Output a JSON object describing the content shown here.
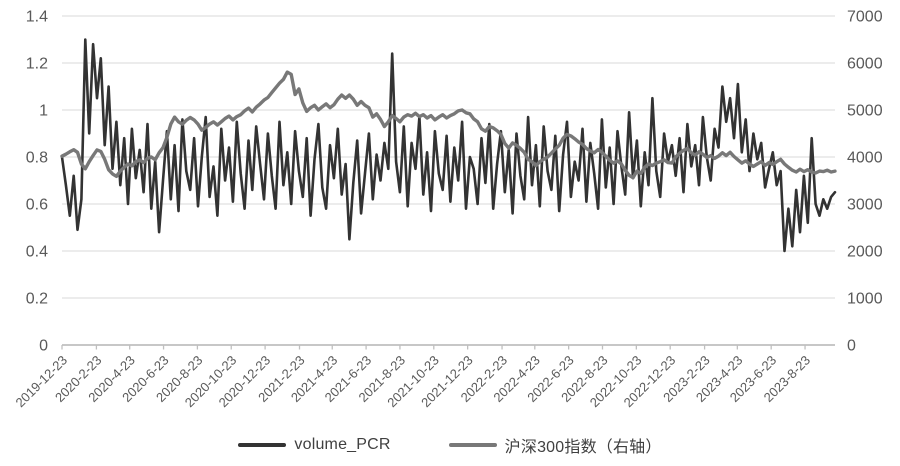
{
  "chart_data": {
    "type": "line",
    "title": "",
    "xlabel": "",
    "ylabel_left": "",
    "ylabel_right": "",
    "grid": "horizontal",
    "legend_position": "bottom",
    "x_start_date": "2019-12-23",
    "x_interval_days": 7,
    "x_tick_labels": [
      "2019-12-23",
      "2020-2-23",
      "2020-4-23",
      "2020-6-23",
      "2020-8-23",
      "2020-10-23",
      "2020-12-23",
      "2021-2-23",
      "2021-4-23",
      "2021-6-23",
      "2021-8-23",
      "2021-10-23",
      "2021-12-23",
      "2022-2-23",
      "2022-4-23",
      "2022-6-23",
      "2022-8-23",
      "2022-10-23",
      "2022-12-23",
      "2023-2-23",
      "2023-4-23",
      "2023-6-23",
      "2023-8-23"
    ],
    "left_axis": {
      "min": 0,
      "max": 1.4,
      "ticks": [
        "0",
        "0.2",
        "0.4",
        "0.6",
        "0.8",
        "1",
        "1.2",
        "1.4"
      ]
    },
    "right_axis": {
      "min": 0,
      "max": 7000,
      "ticks": [
        "0",
        "1000",
        "2000",
        "3000",
        "4000",
        "5000",
        "6000",
        "7000"
      ]
    },
    "series": [
      {
        "name": "volume_PCR",
        "axis": "left",
        "color": "#333333",
        "line_width": 2.6,
        "values": [
          0.8,
          0.68,
          0.55,
          0.72,
          0.49,
          0.62,
          1.3,
          0.9,
          1.28,
          1.05,
          1.22,
          0.85,
          1.1,
          0.75,
          0.95,
          0.68,
          0.88,
          0.6,
          0.92,
          0.71,
          0.83,
          0.65,
          0.94,
          0.58,
          0.78,
          0.48,
          0.7,
          0.91,
          0.62,
          0.85,
          0.57,
          0.96,
          0.74,
          0.66,
          0.88,
          0.59,
          0.8,
          0.97,
          0.63,
          0.76,
          0.55,
          0.92,
          0.7,
          0.84,
          0.61,
          0.95,
          0.73,
          0.58,
          0.87,
          0.66,
          0.93,
          0.77,
          0.62,
          0.9,
          0.72,
          0.58,
          0.95,
          0.68,
          0.82,
          0.6,
          0.91,
          0.74,
          0.63,
          0.88,
          0.55,
          0.79,
          0.94,
          0.67,
          0.58,
          0.85,
          0.71,
          0.92,
          0.64,
          0.77,
          0.45,
          0.69,
          0.87,
          0.56,
          0.73,
          0.9,
          0.62,
          0.81,
          0.7,
          0.86,
          0.75,
          1.24,
          0.78,
          0.65,
          0.93,
          0.59,
          0.86,
          0.75,
          0.97,
          0.64,
          0.82,
          0.57,
          0.91,
          0.73,
          0.66,
          0.89,
          0.61,
          0.84,
          0.7,
          0.95,
          0.58,
          0.8,
          0.75,
          0.6,
          0.88,
          0.69,
          0.94,
          0.58,
          0.77,
          0.91,
          0.65,
          0.83,
          0.56,
          0.9,
          0.72,
          0.62,
          0.97,
          0.68,
          0.85,
          0.59,
          0.93,
          0.74,
          0.66,
          0.89,
          0.57,
          0.81,
          0.95,
          0.63,
          0.78,
          0.7,
          0.92,
          0.61,
          0.86,
          0.73,
          0.58,
          0.96,
          0.67,
          0.84,
          0.6,
          0.91,
          0.76,
          0.64,
          0.99,
          0.71,
          0.87,
          0.59,
          0.82,
          0.68,
          1.05,
          0.74,
          0.63,
          0.9,
          0.78,
          0.85,
          0.72,
          0.88,
          0.65,
          0.94,
          0.76,
          0.85,
          0.68,
          0.97,
          0.8,
          0.7,
          0.92,
          0.84,
          1.1,
          0.95,
          1.05,
          0.88,
          1.11,
          0.82,
          0.96,
          0.74,
          0.9,
          0.79,
          0.86,
          0.67,
          0.75,
          0.82,
          0.68,
          0.74,
          0.4,
          0.58,
          0.42,
          0.66,
          0.48,
          0.72,
          0.52,
          0.88,
          0.6,
          0.55,
          0.62,
          0.58,
          0.63,
          0.65
        ]
      },
      {
        "name": "沪深300指数（右轴）",
        "axis": "right",
        "color": "#787878",
        "line_width": 3.4,
        "values": [
          4017,
          4060,
          4110,
          4155,
          4100,
          3850,
          3750,
          3900,
          4030,
          4150,
          4120,
          3950,
          3730,
          3640,
          3590,
          3700,
          3780,
          3850,
          3810,
          3900,
          3940,
          3880,
          3970,
          4000,
          3940,
          4090,
          4200,
          4420,
          4700,
          4850,
          4750,
          4700,
          4780,
          4840,
          4790,
          4700,
          4570,
          4630,
          4700,
          4750,
          4680,
          4750,
          4820,
          4870,
          4790,
          4860,
          4900,
          4980,
          5040,
          4960,
          5060,
          5130,
          5210,
          5267,
          5370,
          5470,
          5570,
          5650,
          5807,
          5760,
          5330,
          5450,
          5150,
          4970,
          5050,
          5100,
          5000,
          5070,
          5130,
          5050,
          5110,
          5230,
          5320,
          5250,
          5320,
          5230,
          5100,
          5180,
          5100,
          5050,
          4850,
          4920,
          4800,
          4650,
          4750,
          4880,
          4820,
          4750,
          4850,
          4900,
          4870,
          4930,
          4860,
          4900,
          4830,
          4880,
          4790,
          4850,
          4900,
          4830,
          4880,
          4920,
          4980,
          5000,
          4940,
          4920,
          4810,
          4750,
          4600,
          4550,
          4650,
          4620,
          4560,
          4480,
          4290,
          4190,
          4300,
          4250,
          4180,
          4100,
          3950,
          3900,
          3815,
          3900,
          3950,
          4000,
          4080,
          4170,
          4250,
          4400,
          4480,
          4450,
          4390,
          4320,
          4270,
          4180,
          4130,
          4090,
          4160,
          4100,
          4020,
          3930,
          3870,
          3920,
          3850,
          3720,
          3610,
          3560,
          3700,
          3650,
          3780,
          3850,
          3820,
          3870,
          3900,
          3940,
          3880,
          3870,
          4000,
          4080,
          4140,
          4180,
          4090,
          4040,
          4110,
          4060,
          3990,
          4030,
          3970,
          4020,
          4090,
          4030,
          4100,
          4010,
          3940,
          3870,
          3920,
          3850,
          3800,
          3850,
          3900,
          3820,
          3880,
          3840,
          3900,
          3950,
          3850,
          3780,
          3720,
          3680,
          3740,
          3690,
          3730,
          3680,
          3660,
          3700,
          3690,
          3720,
          3680,
          3700
        ]
      }
    ]
  },
  "colors": {
    "gridline": "#d9d9d9",
    "axis_line": "#bfbfbf",
    "tick_text": "#595959",
    "legend_text": "#404040",
    "background": "#ffffff"
  }
}
